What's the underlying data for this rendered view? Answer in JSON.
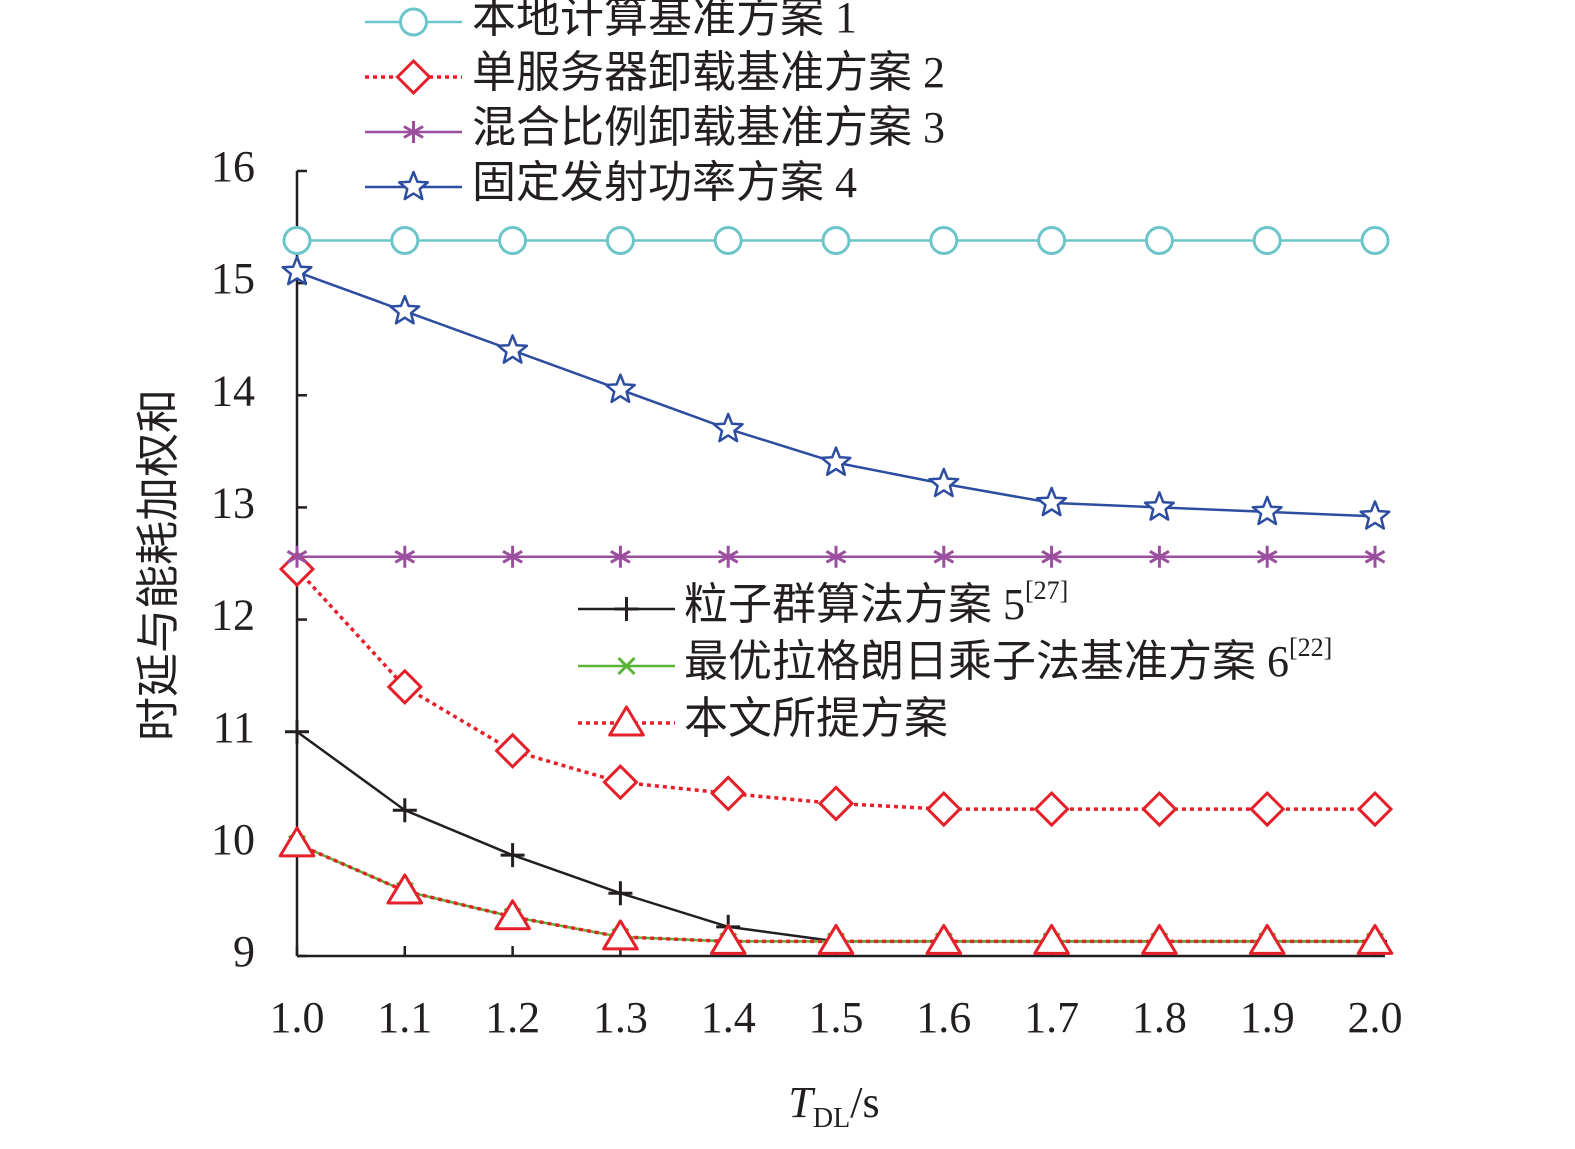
{
  "chart_data": {
    "type": "line",
    "title": "",
    "xlabel": {
      "base": "T",
      "sub": "DL",
      "rest": "/s"
    },
    "ylabel": "时延与能耗加权和",
    "xlim": [
      1.0,
      2.0
    ],
    "ylim": [
      9,
      16
    ],
    "x": [
      1.0,
      1.1,
      1.2,
      1.3,
      1.4,
      1.5,
      1.6,
      1.7,
      1.8,
      1.9,
      2.0
    ],
    "x_tick_labels": [
      "1.0",
      "1.1",
      "1.2",
      "1.3",
      "1.4",
      "1.5",
      "1.6",
      "1.7",
      "1.8",
      "1.9",
      "2.0"
    ],
    "y_ticks": [
      9,
      10,
      11,
      12,
      13,
      14,
      15,
      16
    ],
    "y_tick_labels": [
      "9",
      "10",
      "11",
      "12",
      "13",
      "14",
      "15",
      "16"
    ],
    "grid": false,
    "series": [
      {
        "name": "本地计算基准方案 1",
        "ref": "",
        "color": "#6cc5c9",
        "marker": "circle",
        "dash": "solid",
        "values": [
          15.38,
          15.38,
          15.38,
          15.38,
          15.38,
          15.38,
          15.38,
          15.38,
          15.38,
          15.38,
          15.38
        ]
      },
      {
        "name": "单服务器卸载基准方案 2",
        "ref": "",
        "color": "#e6202a",
        "marker": "diamond",
        "dash": "dotted",
        "values": [
          12.45,
          11.4,
          10.83,
          10.55,
          10.45,
          10.36,
          10.31,
          10.31,
          10.31,
          10.31,
          10.31
        ]
      },
      {
        "name": "混合比例卸载基准方案 3",
        "ref": "",
        "color": "#9b4f9f",
        "marker": "asterisk",
        "dash": "solid",
        "values": [
          12.56,
          12.56,
          12.56,
          12.56,
          12.56,
          12.56,
          12.56,
          12.56,
          12.56,
          12.56,
          12.56
        ]
      },
      {
        "name": "固定发射功率方案 4",
        "ref": "",
        "color": "#2d4da1",
        "marker": "star",
        "dash": "solid",
        "values": [
          15.1,
          14.75,
          14.4,
          14.05,
          13.7,
          13.4,
          13.21,
          13.04,
          13.0,
          12.96,
          12.92
        ]
      },
      {
        "name": "粒子群算法方案 5",
        "ref": "[27]",
        "color": "#231f20",
        "marker": "plus",
        "dash": "solid",
        "values": [
          11.0,
          10.3,
          9.9,
          9.56,
          9.26,
          9.13,
          9.13,
          9.13,
          9.13,
          9.13,
          9.13
        ]
      },
      {
        "name": "最优拉格朗日乘子法基准方案 6",
        "ref": "[22]",
        "color": "#5bb335",
        "marker": "x",
        "dash": "solid",
        "values": [
          10.0,
          9.58,
          9.35,
          9.17,
          9.13,
          9.13,
          9.13,
          9.13,
          9.13,
          9.13,
          9.13
        ]
      },
      {
        "name": "本文所提方案",
        "ref": "",
        "color": "#e6202a",
        "marker": "triangle",
        "dash": "dotted",
        "values": [
          10.0,
          9.58,
          9.35,
          9.17,
          9.13,
          9.13,
          9.13,
          9.13,
          9.13,
          9.13,
          9.13
        ]
      }
    ],
    "legends": [
      {
        "placement": "top-left",
        "series": [
          0,
          1,
          2,
          3
        ]
      },
      {
        "placement": "center-right",
        "series": [
          4,
          5,
          6
        ]
      }
    ]
  }
}
